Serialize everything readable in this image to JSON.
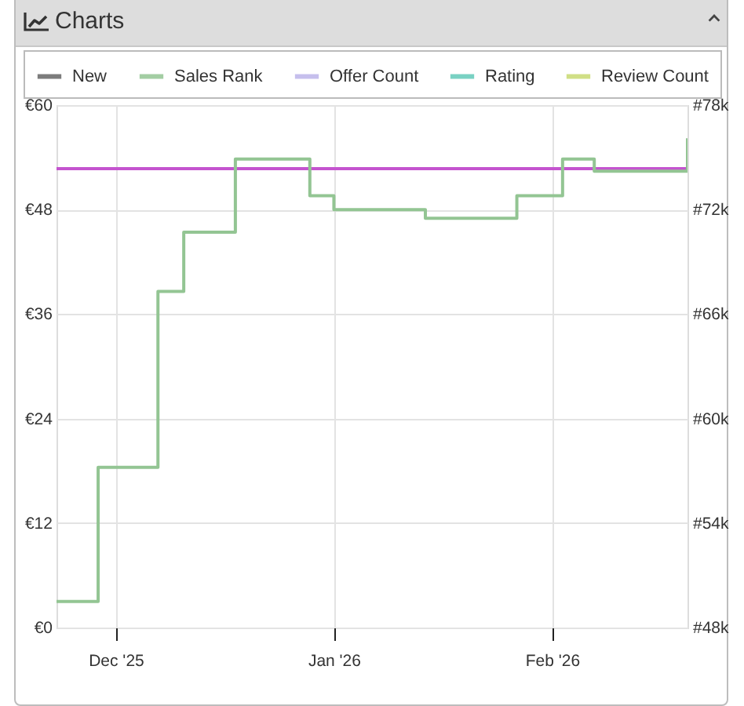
{
  "chart_data": {
    "type": "step",
    "title": "Charts",
    "xlim": [
      "2025-11-22T14:00",
      "2026-02-20T06:00"
    ],
    "xticks": [
      {
        "value": "2025-12-01",
        "label": "Dec '25"
      },
      {
        "value": "2026-01-01",
        "label": "Jan '26"
      },
      {
        "value": "2026-02-01",
        "label": "Feb '26"
      }
    ],
    "ylim": [
      0,
      60
    ],
    "yticks": [
      {
        "value": 0,
        "label": "€0"
      },
      {
        "value": 12,
        "label": "€12"
      },
      {
        "value": 24,
        "label": "€24"
      },
      {
        "value": 36,
        "label": "€36"
      },
      {
        "value": 48,
        "label": "€48"
      },
      {
        "value": 60,
        "label": "€60"
      }
    ],
    "y2lim": [
      48,
      78
    ],
    "y2ticks": [
      {
        "value": 48,
        "label": "#48k"
      },
      {
        "value": 54,
        "label": "#54k"
      },
      {
        "value": 60,
        "label": "#60k"
      },
      {
        "value": 66,
        "label": "#66k"
      },
      {
        "value": 72,
        "label": "#72k"
      },
      {
        "value": 78,
        "label": "#78k"
      }
    ],
    "grid": true,
    "legend": "top",
    "line_style": "solid",
    "series": [
      {
        "color": "#c454cf",
        "x": [
          "2025-11-22T14:00",
          "2026-02-20T06:00"
        ],
        "values": [
          52.7,
          52.7
        ]
      },
      {
        "name": "New",
        "color": "#666666"
      },
      {
        "name": "Sales Rank",
        "color": "#93c593",
        "axis": "y2",
        "x": [
          "2025-11-22T14:00",
          "2025-11-28T12:00",
          "2025-12-07",
          "2025-12-10T16:00",
          "2025-12-18",
          "2025-12-28T14:00",
          "2026-01-01",
          "2026-01-14",
          "2026-01-27",
          "2026-02-02T12:00",
          "2026-02-07",
          "2026-02-20T06:00"
        ],
        "values": [
          49.5,
          57.2,
          67.3,
          70.7,
          74.9,
          72.8,
          72.0,
          71.5,
          72.8,
          74.9,
          74.2,
          76.1
        ]
      },
      {
        "name": "Offer Count",
        "color": "#bdb5ea"
      },
      {
        "name": "Rating",
        "color": "#62c9b9"
      },
      {
        "name": "Review Count",
        "color": "#c8da72"
      }
    ]
  }
}
